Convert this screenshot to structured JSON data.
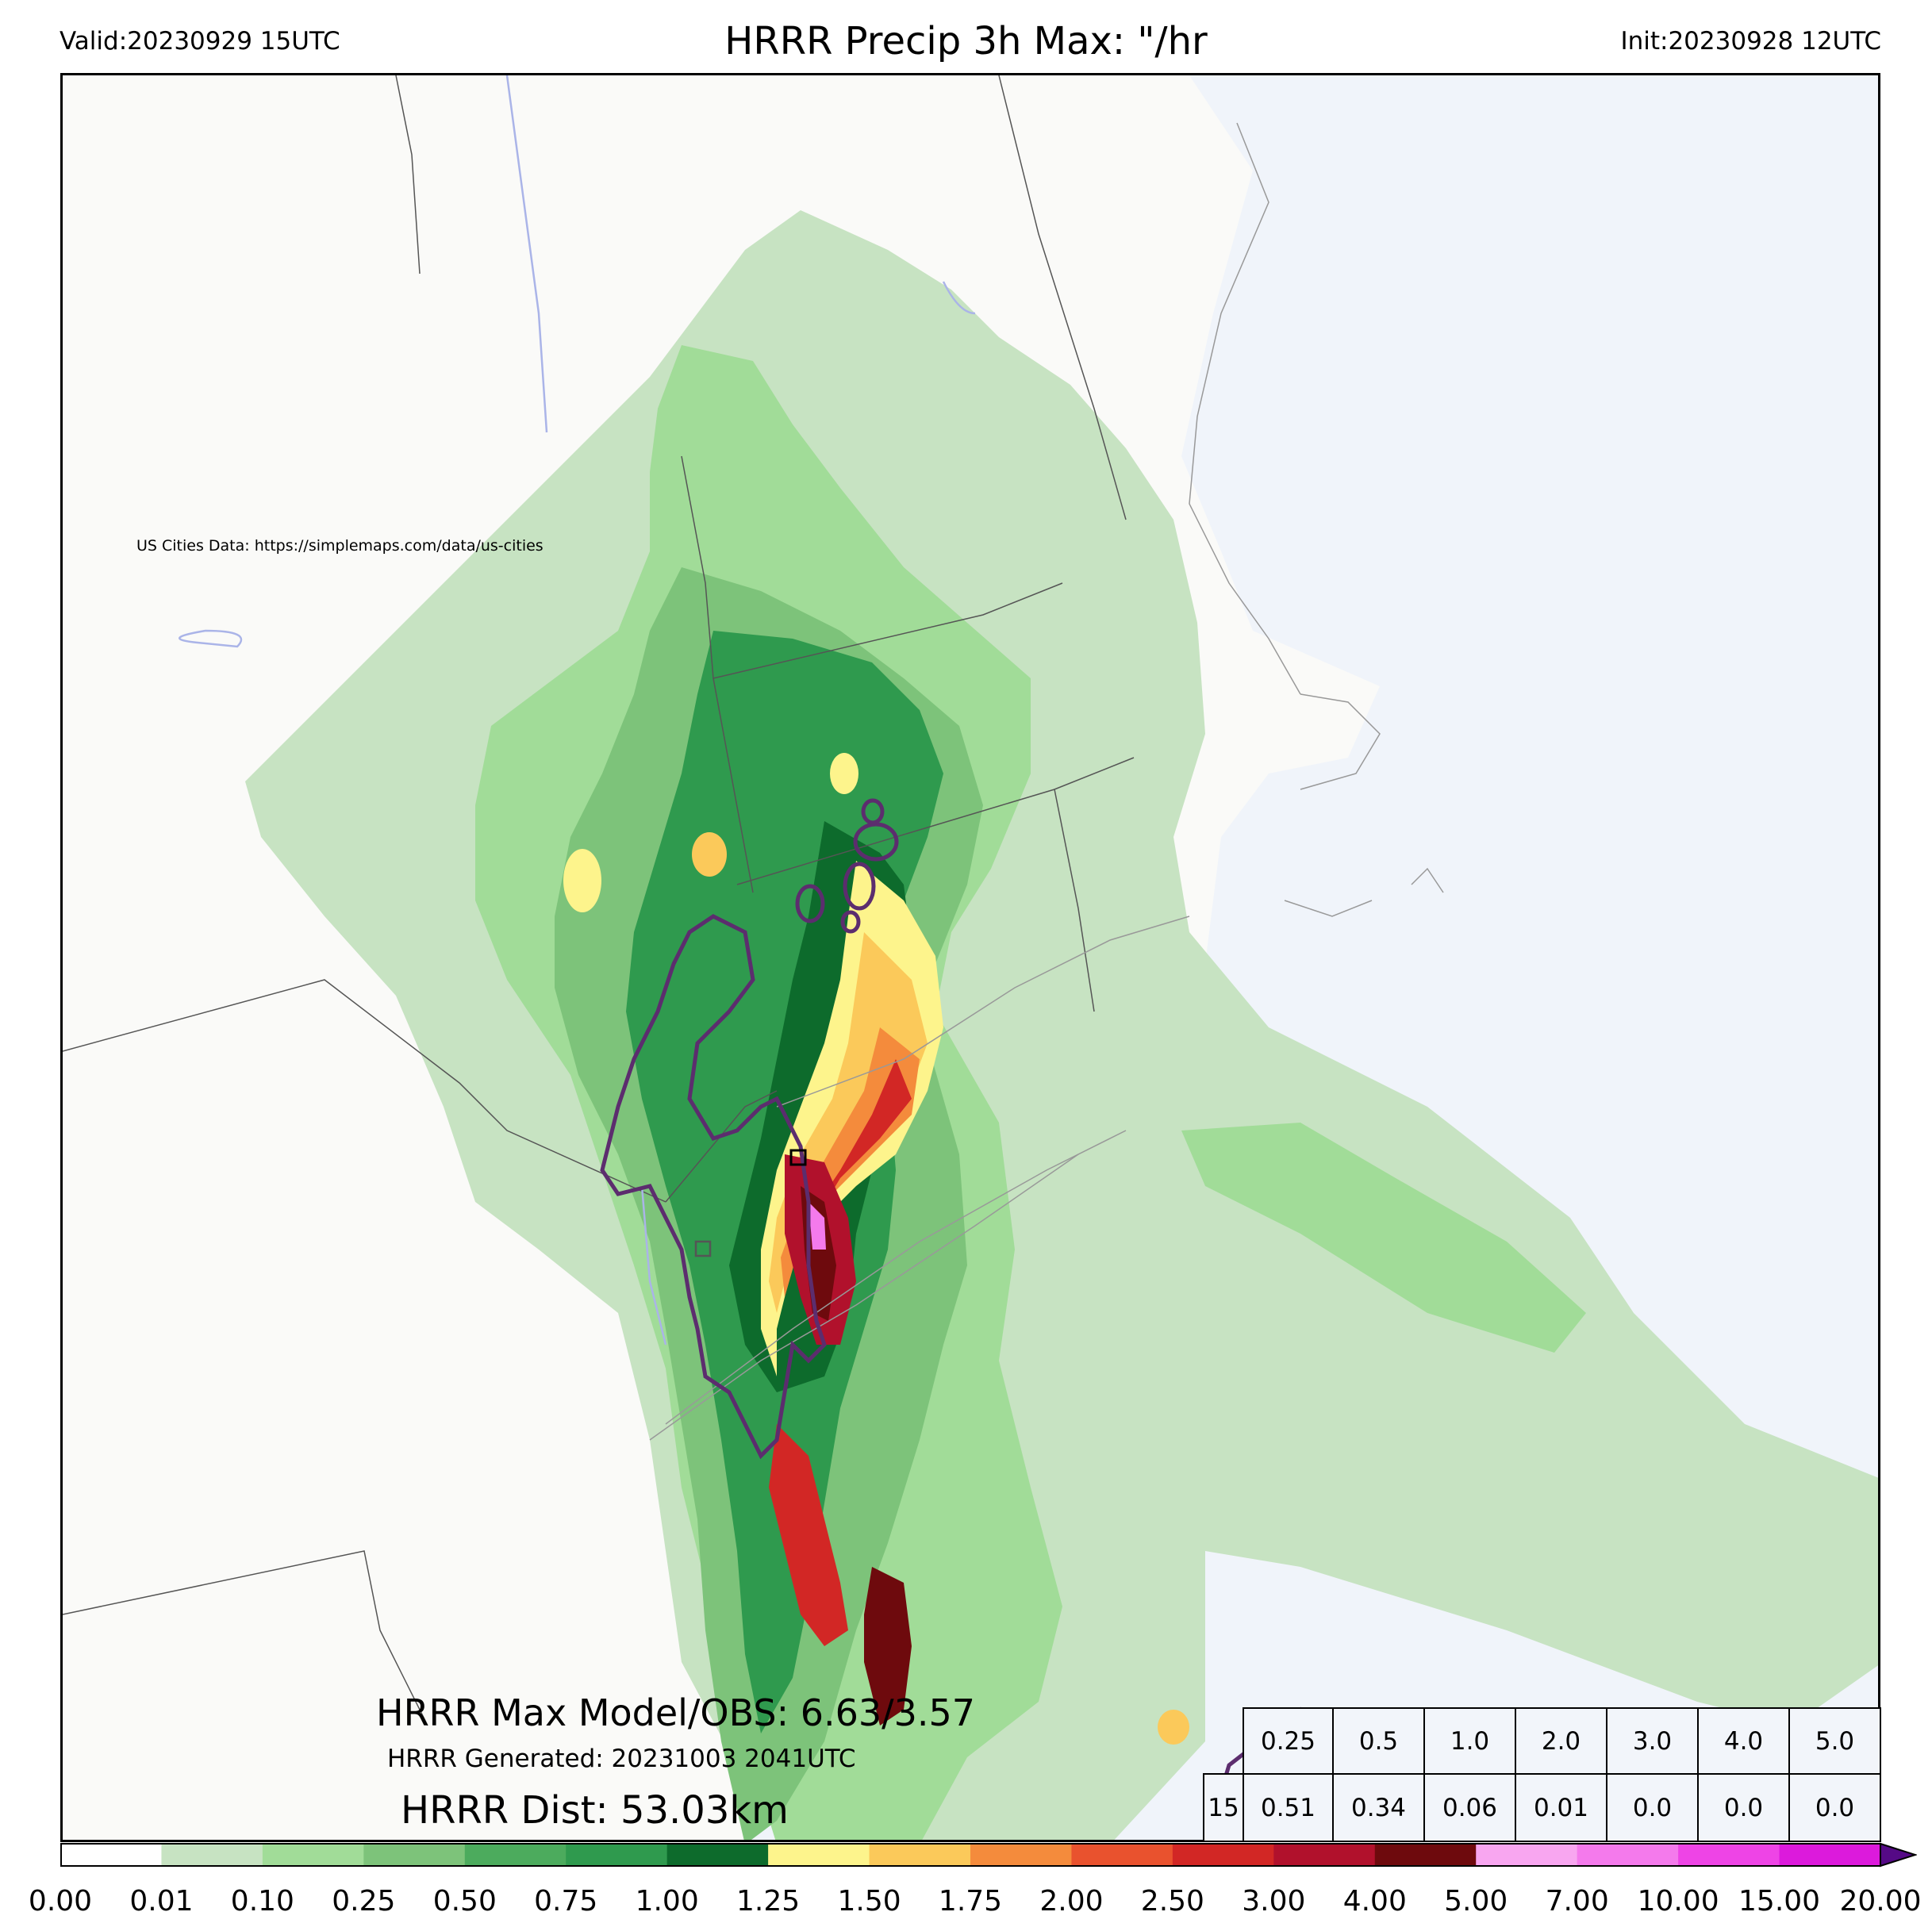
{
  "header": {
    "valid": "Valid:20230929 15UTC",
    "title": "HRRR Precip 3h Max: \"/hr",
    "init": "Init:20230928 12UTC"
  },
  "map": {
    "credit": "US Cities Data: https://simplemaps.com/data/us-cities",
    "land_color": "#fafaf8",
    "water_color": "#f0f4fa",
    "obs_contour_color": "#5c2d6e"
  },
  "stats": {
    "max_line": "HRRR Max Model/OBS: 6.63/3.57",
    "generated": "HRRR Generated: 20231003 2041UTC",
    "dist": "HRRR Dist: 53.03km"
  },
  "threshold_table": {
    "thresholds": [
      "0.25",
      "0.5",
      "1.0",
      "2.0",
      "3.0",
      "4.0",
      "5.0"
    ],
    "row_label": "15",
    "values": [
      "0.51",
      "0.34",
      "0.06",
      "0.01",
      "0.0",
      "0.0",
      "0.0"
    ]
  },
  "colorbar": {
    "ticks": [
      "0.00",
      "0.01",
      "0.10",
      "0.25",
      "0.50",
      "0.75",
      "1.00",
      "1.25",
      "1.50",
      "1.75",
      "2.00",
      "2.50",
      "3.00",
      "4.00",
      "5.00",
      "7.00",
      "10.00",
      "15.00",
      "20.00"
    ],
    "colors": [
      "#ffffff",
      "#c7e3c2",
      "#a1dc98",
      "#7dc37a",
      "#4cab5d",
      "#2f9a4e",
      "#0d6b2c",
      "#fdf48c",
      "#fbc95a",
      "#f48b3c",
      "#e9522e",
      "#d22725",
      "#b1112c",
      "#6e0a0d",
      "#f8a6f0",
      "#f47aec",
      "#ee44e6",
      "#dc1adc",
      "#9410c8",
      "#550a86"
    ]
  }
}
